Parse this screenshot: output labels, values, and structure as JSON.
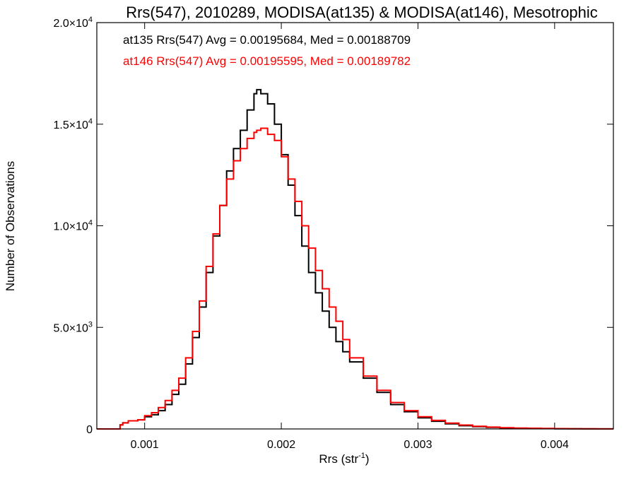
{
  "chart_data": {
    "type": "line",
    "title": "Rrs(547), 2010289, MODISA(at135) & MODISA(at146), Mesotrophic",
    "xlabel_main": "Rrs (str",
    "xlabel_sup": "-1",
    "xlabel_tail": ")",
    "ylabel": "Number of Observations",
    "xlim": [
      0.00065,
      0.00443
    ],
    "ylim": [
      0,
      20000
    ],
    "x_ticks": [
      0.001,
      0.002,
      0.003,
      0.004
    ],
    "x_tick_labels": [
      "0.001",
      "0.002",
      "0.003",
      "0.004"
    ],
    "y_ticks": [
      {
        "value": 0,
        "mant": "0",
        "exp": ""
      },
      {
        "value": 5000,
        "mant": "5.0×10",
        "exp": "3"
      },
      {
        "value": 10000,
        "mant": "1.0×10",
        "exp": "4"
      },
      {
        "value": 15000,
        "mant": "1.5×10",
        "exp": "4"
      },
      {
        "value": 20000,
        "mant": "2.0×10",
        "exp": "4"
      }
    ],
    "grid": false,
    "series": [
      {
        "stats": "at135 Rrs(547) Avg = 0.00195684, Med = 0.00188709",
        "color": "#000000",
        "x": [
          0.00065,
          0.0008,
          0.00082,
          0.00084,
          0.00088,
          0.00095,
          0.001,
          0.00105,
          0.0011,
          0.00115,
          0.0012,
          0.00125,
          0.0013,
          0.00135,
          0.0014,
          0.00145,
          0.0015,
          0.00155,
          0.0016,
          0.00165,
          0.0017,
          0.00175,
          0.0018,
          0.00182,
          0.00185,
          0.0019,
          0.00195,
          0.002,
          0.00205,
          0.0021,
          0.00215,
          0.0022,
          0.00225,
          0.0023,
          0.00235,
          0.0024,
          0.00245,
          0.0025,
          0.0026,
          0.0027,
          0.0028,
          0.0029,
          0.003,
          0.0031,
          0.0032,
          0.0033,
          0.0034,
          0.0035,
          0.0036,
          0.0037,
          0.0038,
          0.0039,
          0.004,
          0.0041,
          0.0042,
          0.0043,
          0.00443
        ],
        "y": [
          0,
          0,
          200,
          300,
          400,
          450,
          600,
          700,
          900,
          1200,
          1700,
          2200,
          3200,
          4500,
          6000,
          7700,
          9500,
          11000,
          12700,
          13800,
          14700,
          15700,
          16500,
          16700,
          16500,
          16000,
          15000,
          13500,
          12000,
          10500,
          9000,
          7700,
          6700,
          5800,
          5000,
          4300,
          3800,
          3300,
          2500,
          1800,
          1200,
          850,
          550,
          380,
          250,
          160,
          110,
          75,
          50,
          35,
          25,
          18,
          12,
          8,
          5,
          3,
          2
        ]
      },
      {
        "stats": "at146 Rrs(547) Avg = 0.00195595, Med = 0.00189782",
        "color": "#ff0000",
        "x": [
          0.00065,
          0.0008,
          0.00082,
          0.00084,
          0.00088,
          0.00095,
          0.001,
          0.00105,
          0.0011,
          0.00115,
          0.0012,
          0.00125,
          0.0013,
          0.00135,
          0.0014,
          0.00145,
          0.0015,
          0.00155,
          0.0016,
          0.00165,
          0.0017,
          0.00175,
          0.0018,
          0.00182,
          0.00185,
          0.0019,
          0.00195,
          0.002,
          0.00205,
          0.0021,
          0.00215,
          0.0022,
          0.00225,
          0.0023,
          0.00235,
          0.0024,
          0.00245,
          0.0025,
          0.0026,
          0.0027,
          0.0028,
          0.0029,
          0.003,
          0.0031,
          0.0032,
          0.0033,
          0.0034,
          0.0035,
          0.0036,
          0.0037,
          0.0038,
          0.0039,
          0.004,
          0.0041,
          0.0042,
          0.0043,
          0.00443
        ],
        "y": [
          0,
          0,
          200,
          300,
          400,
          450,
          650,
          800,
          1050,
          1400,
          1900,
          2500,
          3500,
          4800,
          6300,
          8000,
          9600,
          11000,
          12300,
          13200,
          13800,
          14300,
          14600,
          14700,
          14800,
          14500,
          14200,
          13400,
          12300,
          11200,
          10000,
          8900,
          7800,
          6900,
          6000,
          5300,
          4400,
          3500,
          2600,
          1900,
          1300,
          900,
          600,
          420,
          290,
          190,
          130,
          90,
          60,
          45,
          35,
          25,
          18,
          12,
          8,
          5,
          3
        ]
      }
    ]
  }
}
